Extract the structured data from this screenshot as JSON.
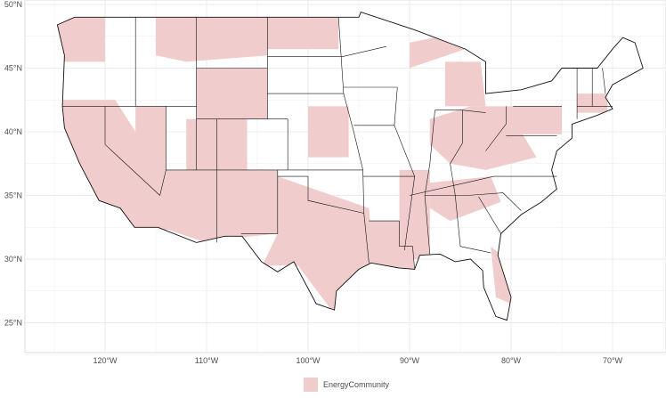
{
  "axes": {
    "y_labels": [
      "50°N",
      "45°N",
      "40°N",
      "35°N",
      "30°N",
      "25°N"
    ],
    "x_labels": [
      "120°W",
      "110°W",
      "100°W",
      "90°W",
      "80°W",
      "70°W"
    ]
  },
  "legend": {
    "label": "EnergyCommunity"
  }
}
